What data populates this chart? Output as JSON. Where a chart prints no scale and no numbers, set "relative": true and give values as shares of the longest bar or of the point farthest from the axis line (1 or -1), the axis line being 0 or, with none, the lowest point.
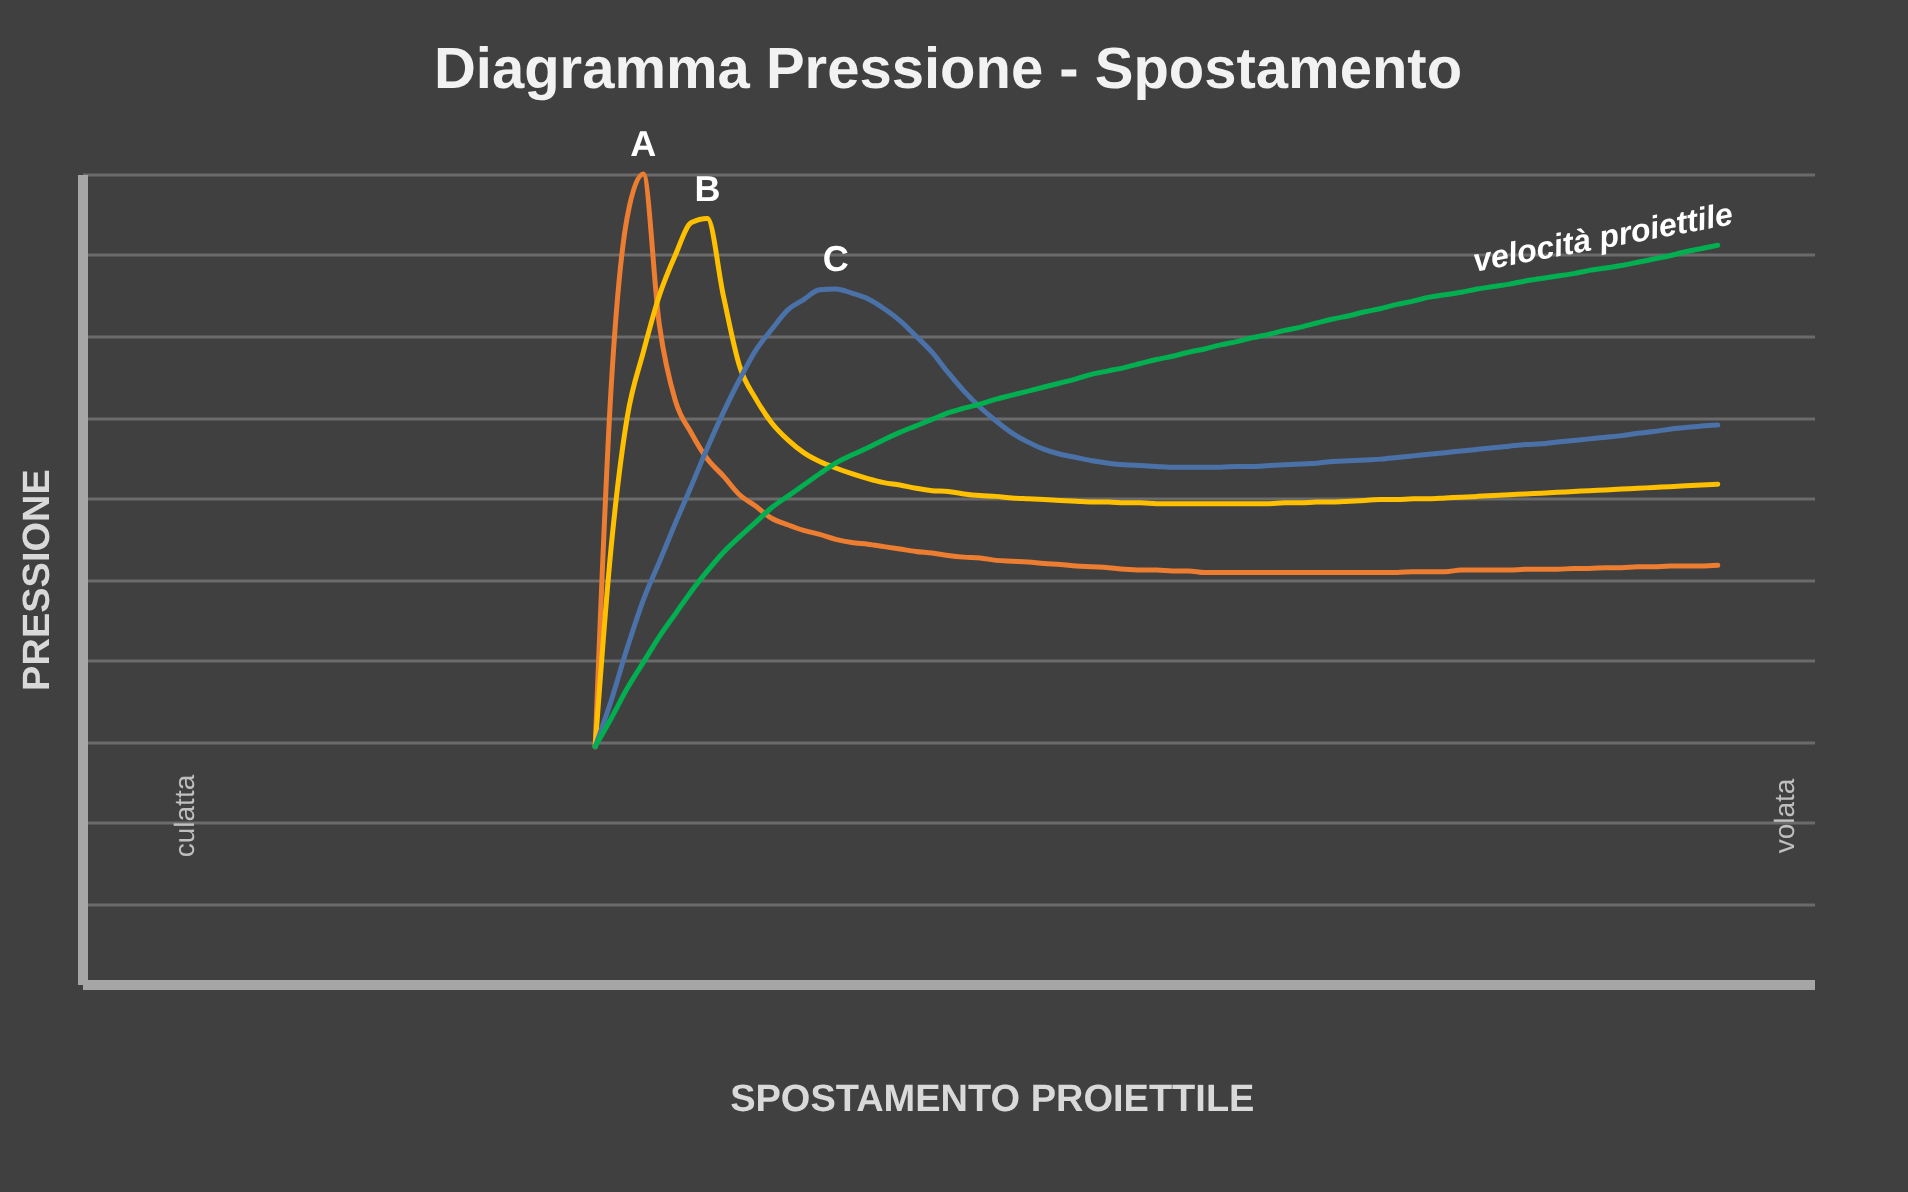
{
  "chart_data": {
    "type": "line",
    "title": "Diagramma Pressione - Spostamento",
    "xlabel": "SPOSTAMENTO PROIETTILE",
    "ylabel": "PRESSIONE",
    "relative": true,
    "grid": "y",
    "categories": [
      null,
      null,
      null,
      null,
      null,
      null,
      null,
      null,
      null,
      null,
      null,
      null,
      null,
      null,
      null,
      null,
      null,
      null,
      null,
      null,
      null,
      null,
      null,
      null,
      null,
      null,
      null,
      null,
      null,
      null,
      null,
      null,
      null,
      null,
      null,
      null,
      null,
      null,
      null,
      null,
      null,
      null,
      null,
      null,
      null,
      null,
      null,
      null,
      null,
      null,
      null,
      null,
      null,
      null,
      null,
      null,
      null,
      null,
      null,
      null,
      null,
      null,
      null,
      null,
      null,
      null,
      null,
      null,
      null,
      null,
      null,
      null,
      null,
      null,
      null,
      null,
      null,
      null,
      null,
      null,
      null,
      null,
      null,
      null,
      null,
      null,
      null,
      null,
      null,
      null,
      null,
      null,
      null,
      null,
      null,
      null,
      null,
      null,
      null,
      null,
      null,
      null,
      null,
      null,
      null,
      null,
      null,
      null,
      null
    ],
    "series": [
      {
        "name": "A",
        "color": "#ed7d31",
        "values": [
          null,
          null,
          null,
          null,
          null,
          null,
          null,
          null,
          null,
          null,
          null,
          null,
          null,
          null,
          null,
          null,
          null,
          null,
          null,
          null,
          null,
          null,
          null,
          null,
          null,
          null,
          null,
          null,
          null,
          null,
          null,
          null,
          0.293,
          0.738,
          0.947,
          1.0,
          0.814,
          0.72,
          0.68,
          0.648,
          0.627,
          0.604,
          0.59,
          0.575,
          0.567,
          0.56,
          0.555,
          0.549,
          0.545,
          0.543,
          0.54,
          0.537,
          0.534,
          0.532,
          0.529,
          0.527,
          0.526,
          0.523,
          0.522,
          0.521,
          0.519,
          0.518,
          0.516,
          0.515,
          0.514,
          0.512,
          0.511,
          0.511,
          0.51,
          0.51,
          0.508,
          0.508,
          0.508,
          0.508,
          0.508,
          0.508,
          0.508,
          0.508,
          0.508,
          0.508,
          0.508,
          0.508,
          0.508,
          0.509,
          0.509,
          0.509,
          0.511,
          0.511,
          0.511,
          0.511,
          0.512,
          0.512,
          0.512,
          0.513,
          0.513,
          0.514,
          0.514,
          0.515,
          0.515,
          0.516,
          0.516,
          0.516,
          0.517,
          null,
          null,
          null,
          null,
          null,
          null
        ]
      },
      {
        "name": "B",
        "color": "#ffc000",
        "values": [
          null,
          null,
          null,
          null,
          null,
          null,
          null,
          null,
          null,
          null,
          null,
          null,
          null,
          null,
          null,
          null,
          null,
          null,
          null,
          null,
          null,
          null,
          null,
          null,
          null,
          null,
          null,
          null,
          null,
          null,
          null,
          null,
          0.293,
          0.54,
          0.7,
          0.78,
          0.85,
          0.9,
          0.94,
          0.945,
          0.849,
          0.763,
          0.723,
          0.693,
          0.672,
          0.656,
          0.645,
          0.637,
          0.63,
          0.624,
          0.619,
          0.616,
          0.612,
          0.609,
          0.608,
          0.605,
          0.603,
          0.602,
          0.6,
          0.599,
          0.598,
          0.597,
          0.596,
          0.595,
          0.595,
          0.594,
          0.594,
          0.593,
          0.593,
          0.593,
          0.593,
          0.593,
          0.593,
          0.593,
          0.593,
          0.594,
          0.594,
          0.595,
          0.595,
          0.596,
          0.597,
          0.598,
          0.598,
          0.599,
          0.599,
          0.6,
          0.601,
          0.602,
          0.603,
          0.604,
          0.605,
          0.606,
          0.607,
          0.608,
          0.609,
          0.61,
          0.611,
          0.612,
          0.613,
          0.614,
          0.615,
          0.616,
          0.617,
          null,
          null,
          null,
          null,
          null,
          null
        ]
      },
      {
        "name": "C",
        "color": "#4a72a8",
        "values": [
          null,
          null,
          null,
          null,
          null,
          null,
          null,
          null,
          null,
          null,
          null,
          null,
          null,
          null,
          null,
          null,
          null,
          null,
          null,
          null,
          null,
          null,
          null,
          null,
          null,
          null,
          null,
          null,
          null,
          null,
          null,
          null,
          0.293,
          0.35,
          0.415,
          0.474,
          0.521,
          0.569,
          0.615,
          0.662,
          0.706,
          0.746,
          0.782,
          0.808,
          0.832,
          0.845,
          0.857,
          0.858,
          0.853,
          0.846,
          0.834,
          0.819,
          0.8,
          0.78,
          0.755,
          0.732,
          0.712,
          0.695,
          0.68,
          0.669,
          0.66,
          0.654,
          0.65,
          0.646,
          0.643,
          0.641,
          0.64,
          0.639,
          0.638,
          0.638,
          0.638,
          0.638,
          0.639,
          0.639,
          0.64,
          0.641,
          0.642,
          0.643,
          0.645,
          0.646,
          0.647,
          0.648,
          0.65,
          0.652,
          0.654,
          0.656,
          0.658,
          0.66,
          0.662,
          0.664,
          0.666,
          0.667,
          0.669,
          0.671,
          0.673,
          0.675,
          0.677,
          0.68,
          0.682,
          0.685,
          0.687,
          0.689,
          0.69,
          null,
          null,
          null,
          null,
          null,
          null
        ]
      },
      {
        "name": "velocità proiettile",
        "color": "#00b050",
        "values": [
          null,
          null,
          null,
          null,
          null,
          null,
          null,
          null,
          null,
          null,
          null,
          null,
          null,
          null,
          null,
          null,
          null,
          null,
          null,
          null,
          null,
          null,
          null,
          null,
          null,
          null,
          null,
          null,
          null,
          null,
          null,
          null,
          0.293,
          0.328,
          0.365,
          0.397,
          0.429,
          0.457,
          0.485,
          0.51,
          0.533,
          0.552,
          0.57,
          0.588,
          0.602,
          0.616,
          0.63,
          0.643,
          0.653,
          0.662,
          0.672,
          0.681,
          0.689,
          0.697,
          0.705,
          0.711,
          0.716,
          0.722,
          0.727,
          0.732,
          0.737,
          0.742,
          0.747,
          0.753,
          0.757,
          0.761,
          0.766,
          0.771,
          0.775,
          0.78,
          0.784,
          0.789,
          0.793,
          0.798,
          0.802,
          0.807,
          0.811,
          0.816,
          0.821,
          0.825,
          0.83,
          0.834,
          0.839,
          0.843,
          0.848,
          0.851,
          0.854,
          0.858,
          0.861,
          0.864,
          0.868,
          0.871,
          0.874,
          0.877,
          0.881,
          0.884,
          0.887,
          0.891,
          0.895,
          0.899,
          0.904,
          0.908,
          0.912,
          null,
          null,
          null,
          null,
          null,
          null
        ]
      }
    ],
    "annotations": [
      "culatta",
      "volata"
    ]
  }
}
